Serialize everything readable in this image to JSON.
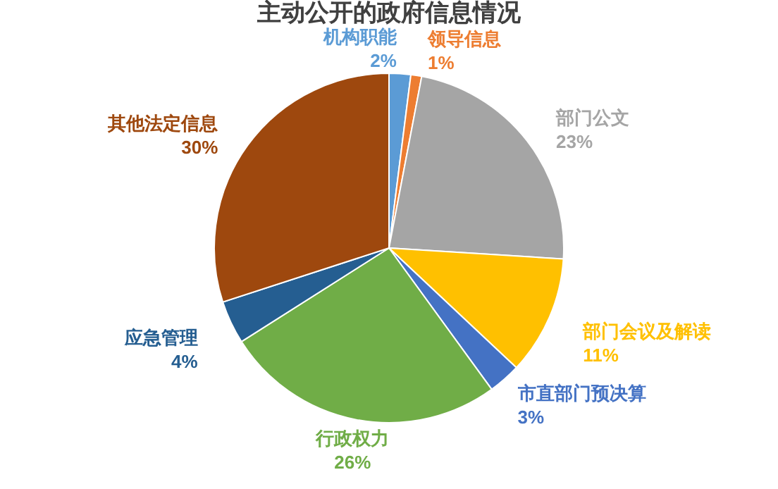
{
  "chart_data": {
    "type": "pie",
    "title": "主动公开的政府信息情况",
    "categories": [
      "机构职能",
      "领导信息",
      "部门公文",
      "部门会议及解读",
      "市直部门预决算",
      "行政权力",
      "应急管理",
      "其他法定信息"
    ],
    "values": [
      2,
      1,
      23,
      11,
      3,
      26,
      4,
      30
    ],
    "value_labels": [
      "2%",
      "1%",
      "23%",
      "11%",
      "3%",
      "26%",
      "4%",
      "30%"
    ],
    "colors": [
      "#5b9bd5",
      "#ed7d31",
      "#a5a5a5",
      "#ffc000",
      "#4472c4",
      "#70ad47",
      "#255e91",
      "#9e480e"
    ]
  }
}
